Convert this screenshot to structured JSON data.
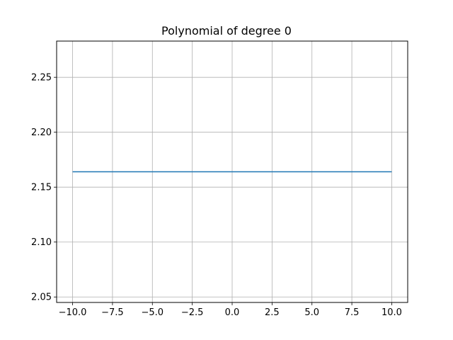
{
  "chart_data": {
    "type": "line",
    "title": "Polynomial of degree 0",
    "xlabel": "",
    "ylabel": "",
    "xlim": [
      -11,
      11
    ],
    "ylim": [
      2.045,
      2.283
    ],
    "xticks": [
      -10.0,
      -7.5,
      -5.0,
      -2.5,
      0.0,
      2.5,
      5.0,
      7.5,
      10.0
    ],
    "xtick_labels": [
      "−10.0",
      "−7.5",
      "−5.0",
      "−2.5",
      "0.0",
      "2.5",
      "5.0",
      "7.5",
      "10.0"
    ],
    "yticks": [
      2.05,
      2.1,
      2.15,
      2.2,
      2.25
    ],
    "ytick_labels": [
      "2.05",
      "2.10",
      "2.15",
      "2.20",
      "2.25"
    ],
    "grid": true,
    "series": [
      {
        "color": "#1f77b4",
        "x": [
          -10,
          10
        ],
        "y": [
          2.164,
          2.164
        ]
      }
    ]
  },
  "colors": {
    "grid": "#b0b0b0",
    "axes": "#000000",
    "background": "#ffffff"
  }
}
